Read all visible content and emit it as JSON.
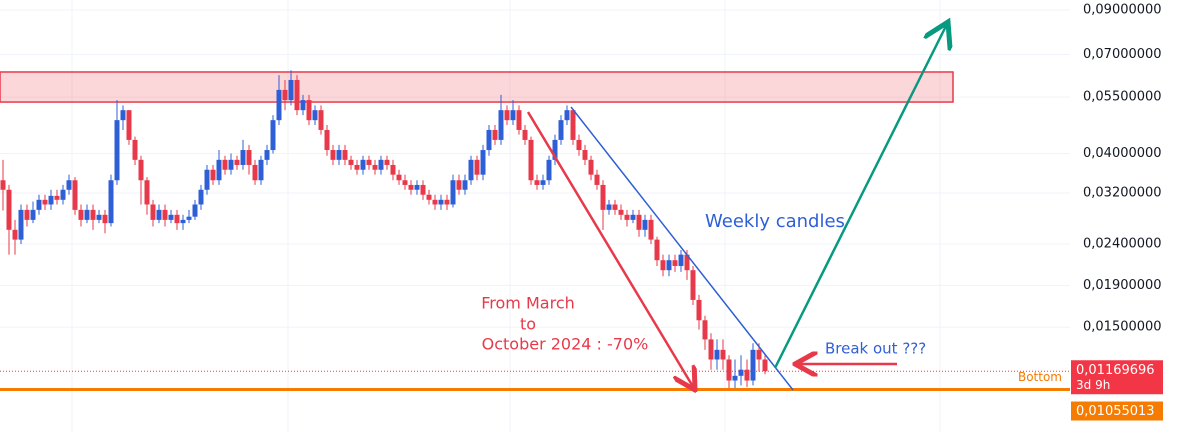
{
  "chart_data": {
    "type": "candlestick",
    "log_scale": true,
    "grid": true,
    "up_color": "#2f5fd6",
    "down_color": "#e8394a",
    "ylim": [
      0.0083,
      0.0952
    ],
    "yticks": [
      {
        "value": 0.09,
        "label": "0,09000000"
      },
      {
        "value": 0.07,
        "label": "0,07000000"
      },
      {
        "value": 0.055,
        "label": "0,05500000"
      },
      {
        "value": 0.04,
        "label": "0,04000000"
      },
      {
        "value": 0.032,
        "label": "0,03200000"
      },
      {
        "value": 0.024,
        "label": "0,02400000"
      },
      {
        "value": 0.019,
        "label": "0,01900000"
      },
      {
        "value": 0.015,
        "label": "0,01500000"
      }
    ],
    "open": [
      0.0344,
      0.0326,
      0.026,
      0.0246,
      0.0291,
      0.0275,
      0.0291,
      0.0308,
      0.03,
      0.0315,
      0.0308,
      0.0326,
      0.0344,
      0.0291,
      0.0275,
      0.0291,
      0.0275,
      0.0283,
      0.027,
      0.0344,
      0.0483,
      0.0511,
      0.0432,
      0.0386,
      0.0344,
      0.03,
      0.0275,
      0.0291,
      0.0275,
      0.0283,
      0.027,
      0.0275,
      0.028,
      0.03,
      0.0326,
      0.0365,
      0.0344,
      0.0386,
      0.0365,
      0.0386,
      0.0375,
      0.0408,
      0.0375,
      0.0344,
      0.0386,
      0.0408,
      0.0483,
      0.0573,
      0.0541,
      0.0606,
      0.0511,
      0.0541,
      0.0483,
      0.0511,
      0.0457,
      0.0408,
      0.0386,
      0.0408,
      0.0386,
      0.0375,
      0.0365,
      0.0386,
      0.0375,
      0.0365,
      0.0386,
      0.0375,
      0.0355,
      0.0344,
      0.0335,
      0.0326,
      0.0335,
      0.0317,
      0.0308,
      0.03,
      0.0308,
      0.03,
      0.0344,
      0.0326,
      0.0344,
      0.0386,
      0.0355,
      0.0408,
      0.0457,
      0.0432,
      0.0511,
      0.0483,
      0.0511,
      0.0457,
      0.0432,
      0.0344,
      0.0335,
      0.0344,
      0.0386,
      0.0432,
      0.0483,
      0.0511,
      0.0432,
      0.0408,
      0.0386,
      0.0355,
      0.0335,
      0.0291,
      0.03,
      0.0291,
      0.0283,
      0.0275,
      0.0283,
      0.026,
      0.0275,
      0.0246,
      0.0219,
      0.0207,
      0.0219,
      0.0212,
      0.0226,
      0.0207,
      0.0175,
      0.0156,
      0.014,
      0.0125,
      0.0132,
      0.0125,
      0.0111,
      0.0114,
      0.0118,
      0.0111,
      0.0132,
      0.0125
    ],
    "high": [
      0.0386,
      0.0335,
      0.0275,
      0.03,
      0.03,
      0.0305,
      0.0317,
      0.0317,
      0.0326,
      0.0326,
      0.0335,
      0.0355,
      0.035,
      0.03,
      0.03,
      0.03,
      0.0291,
      0.0291,
      0.0355,
      0.0541,
      0.0525,
      0.0511,
      0.044,
      0.0395,
      0.035,
      0.0308,
      0.03,
      0.03,
      0.0291,
      0.0291,
      0.0283,
      0.0291,
      0.0308,
      0.0335,
      0.0375,
      0.0375,
      0.0408,
      0.0395,
      0.04,
      0.0395,
      0.0432,
      0.042,
      0.0386,
      0.0395,
      0.042,
      0.0497,
      0.0623,
      0.0606,
      0.064,
      0.0623,
      0.0557,
      0.0557,
      0.0525,
      0.0525,
      0.047,
      0.042,
      0.042,
      0.042,
      0.0395,
      0.0386,
      0.0395,
      0.0395,
      0.0386,
      0.0395,
      0.0395,
      0.0386,
      0.0365,
      0.0355,
      0.0344,
      0.0344,
      0.0344,
      0.0326,
      0.0317,
      0.0317,
      0.0317,
      0.0355,
      0.0355,
      0.0355,
      0.0395,
      0.0395,
      0.042,
      0.047,
      0.047,
      0.0557,
      0.0525,
      0.0541,
      0.0525,
      0.047,
      0.044,
      0.0355,
      0.0355,
      0.0395,
      0.0445,
      0.0497,
      0.0525,
      0.0511,
      0.0445,
      0.042,
      0.0395,
      0.0365,
      0.0344,
      0.0308,
      0.0308,
      0.03,
      0.0291,
      0.0291,
      0.0291,
      0.0283,
      0.0283,
      0.025,
      0.0226,
      0.0226,
      0.0226,
      0.0232,
      0.0232,
      0.0212,
      0.018,
      0.016,
      0.0145,
      0.014,
      0.014,
      0.0128,
      0.0125,
      0.0128,
      0.0125,
      0.0137,
      0.0137,
      0.0128
    ],
    "low": [
      0.029,
      0.0226,
      0.0226,
      0.024,
      0.0265,
      0.027,
      0.0283,
      0.0291,
      0.0291,
      0.03,
      0.03,
      0.0317,
      0.0283,
      0.0265,
      0.027,
      0.026,
      0.027,
      0.0255,
      0.0265,
      0.0335,
      0.0457,
      0.042,
      0.0375,
      0.03,
      0.0283,
      0.0265,
      0.027,
      0.0265,
      0.027,
      0.026,
      0.026,
      0.027,
      0.0275,
      0.0291,
      0.0317,
      0.0335,
      0.0335,
      0.0355,
      0.0355,
      0.0365,
      0.0365,
      0.0355,
      0.0335,
      0.0335,
      0.0375,
      0.04,
      0.047,
      0.0511,
      0.0525,
      0.0497,
      0.0497,
      0.047,
      0.047,
      0.0445,
      0.0395,
      0.0375,
      0.0375,
      0.0375,
      0.0365,
      0.0355,
      0.0355,
      0.0365,
      0.0355,
      0.0355,
      0.0365,
      0.0344,
      0.0335,
      0.0326,
      0.0317,
      0.0317,
      0.0308,
      0.03,
      0.0291,
      0.0291,
      0.0291,
      0.0295,
      0.0317,
      0.0317,
      0.0335,
      0.0344,
      0.0344,
      0.0395,
      0.042,
      0.042,
      0.047,
      0.047,
      0.0445,
      0.042,
      0.0335,
      0.0326,
      0.0326,
      0.0335,
      0.0375,
      0.042,
      0.047,
      0.042,
      0.0395,
      0.0375,
      0.0344,
      0.0326,
      0.026,
      0.0283,
      0.0283,
      0.0275,
      0.0265,
      0.027,
      0.025,
      0.025,
      0.024,
      0.0212,
      0.02,
      0.02,
      0.0205,
      0.0205,
      0.0196,
      0.017,
      0.0148,
      0.0132,
      0.0118,
      0.0118,
      0.0118,
      0.0105,
      0.0105,
      0.0108,
      0.0107,
      0.0108,
      0.0117,
      0.0115
    ],
    "close": [
      0.0326,
      0.026,
      0.0246,
      0.0291,
      0.0275,
      0.0291,
      0.0308,
      0.03,
      0.0315,
      0.0308,
      0.0326,
      0.0344,
      0.0291,
      0.0275,
      0.0291,
      0.0275,
      0.0283,
      0.027,
      0.0344,
      0.0483,
      0.0511,
      0.0432,
      0.0386,
      0.0344,
      0.03,
      0.0275,
      0.0291,
      0.0275,
      0.0283,
      0.027,
      0.0275,
      0.028,
      0.03,
      0.0326,
      0.0365,
      0.0344,
      0.0386,
      0.0365,
      0.0386,
      0.0375,
      0.0408,
      0.0375,
      0.0344,
      0.0386,
      0.0408,
      0.0483,
      0.0573,
      0.0541,
      0.0606,
      0.0511,
      0.0541,
      0.0483,
      0.0511,
      0.0457,
      0.0408,
      0.0386,
      0.0408,
      0.0386,
      0.0375,
      0.0365,
      0.0386,
      0.0375,
      0.0365,
      0.0386,
      0.0375,
      0.0355,
      0.0344,
      0.0335,
      0.0326,
      0.0335,
      0.0317,
      0.0308,
      0.03,
      0.0308,
      0.03,
      0.0344,
      0.0326,
      0.0344,
      0.0386,
      0.0355,
      0.0408,
      0.0457,
      0.0432,
      0.0511,
      0.0483,
      0.0511,
      0.0457,
      0.0432,
      0.0344,
      0.0335,
      0.0344,
      0.0386,
      0.0432,
      0.0483,
      0.0511,
      0.0432,
      0.0408,
      0.0386,
      0.0355,
      0.0335,
      0.0291,
      0.03,
      0.0291,
      0.0283,
      0.0275,
      0.0283,
      0.026,
      0.0275,
      0.0246,
      0.0219,
      0.0207,
      0.0219,
      0.0212,
      0.0226,
      0.0207,
      0.0175,
      0.0156,
      0.014,
      0.0125,
      0.0132,
      0.0125,
      0.0111,
      0.0114,
      0.0118,
      0.0111,
      0.0132,
      0.0125,
      0.0117
    ],
    "resistance_zone": [
      0.0535,
      0.0634
    ],
    "last_price": {
      "value": 0.01169696,
      "label": "0,01169696",
      "countdown": "3d 9h",
      "color": "#f23645"
    },
    "bottom_price": {
      "value": 0.01055013,
      "label": "0,01055013",
      "name": "Bottom",
      "color": "#f57c00"
    },
    "annotations": [
      "Weekly candles",
      "From March",
      "to",
      "October 2024 : -70%",
      "Break out ???"
    ]
  }
}
